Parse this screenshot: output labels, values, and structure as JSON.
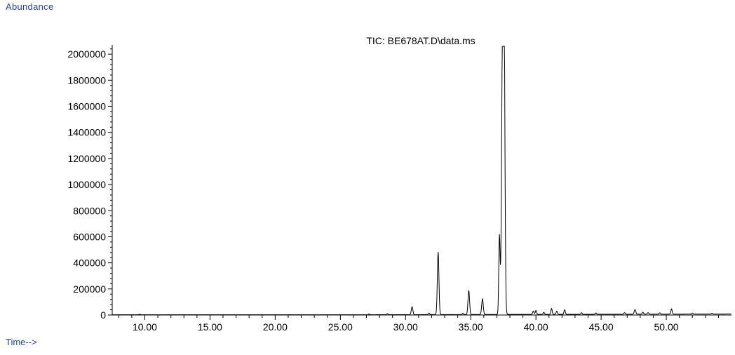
{
  "chart_data": {
    "type": "line",
    "title": "TIC: BE678AT.D\\data.ms",
    "ylabel": "Abundance",
    "xlabel": "Time-->",
    "xlim": [
      7.5,
      55.0
    ],
    "ylim": [
      0,
      2060000
    ],
    "x_ticks": [
      "10.00",
      "15.00",
      "20.00",
      "25.00",
      "30.00",
      "35.00",
      "40.00",
      "45.00",
      "50.00"
    ],
    "y_ticks": [
      "0",
      "200000",
      "400000",
      "600000",
      "800000",
      "1000000",
      "1200000",
      "1400000",
      "1600000",
      "1800000",
      "2000000"
    ],
    "baseline": 2000,
    "peaks": [
      {
        "x": 9.6,
        "y": 4000,
        "w": 0.05
      },
      {
        "x": 27.2,
        "y": 6000,
        "w": 0.05
      },
      {
        "x": 28.6,
        "y": 8000,
        "w": 0.05
      },
      {
        "x": 30.5,
        "y": 60000,
        "w": 0.06
      },
      {
        "x": 31.8,
        "y": 12000,
        "w": 0.05
      },
      {
        "x": 32.5,
        "y": 480000,
        "w": 0.06
      },
      {
        "x": 34.4,
        "y": 10000,
        "w": 0.05
      },
      {
        "x": 34.85,
        "y": 185000,
        "w": 0.06
      },
      {
        "x": 35.9,
        "y": 120000,
        "w": 0.06
      },
      {
        "x": 37.2,
        "y": 600000,
        "w": 0.05
      },
      {
        "x": 37.45,
        "y": 2030000,
        "w": 0.08
      },
      {
        "x": 37.55,
        "y": 2000000,
        "w": 0.07
      },
      {
        "x": 39.8,
        "y": 25000,
        "w": 0.05
      },
      {
        "x": 40.0,
        "y": 30000,
        "w": 0.05
      },
      {
        "x": 40.6,
        "y": 15000,
        "w": 0.05
      },
      {
        "x": 41.2,
        "y": 45000,
        "w": 0.05
      },
      {
        "x": 41.6,
        "y": 25000,
        "w": 0.05
      },
      {
        "x": 42.2,
        "y": 35000,
        "w": 0.05
      },
      {
        "x": 43.5,
        "y": 12000,
        "w": 0.05
      },
      {
        "x": 44.6,
        "y": 10000,
        "w": 0.05
      },
      {
        "x": 46.8,
        "y": 12000,
        "w": 0.05
      },
      {
        "x": 47.6,
        "y": 35000,
        "w": 0.06
      },
      {
        "x": 48.2,
        "y": 15000,
        "w": 0.05
      },
      {
        "x": 48.6,
        "y": 12000,
        "w": 0.05
      },
      {
        "x": 49.5,
        "y": 10000,
        "w": 0.05
      },
      {
        "x": 50.4,
        "y": 40000,
        "w": 0.05
      },
      {
        "x": 52.0,
        "y": 8000,
        "w": 0.05
      },
      {
        "x": 53.5,
        "y": 6000,
        "w": 0.05
      }
    ],
    "grid": false,
    "line_color": "#000000"
  }
}
